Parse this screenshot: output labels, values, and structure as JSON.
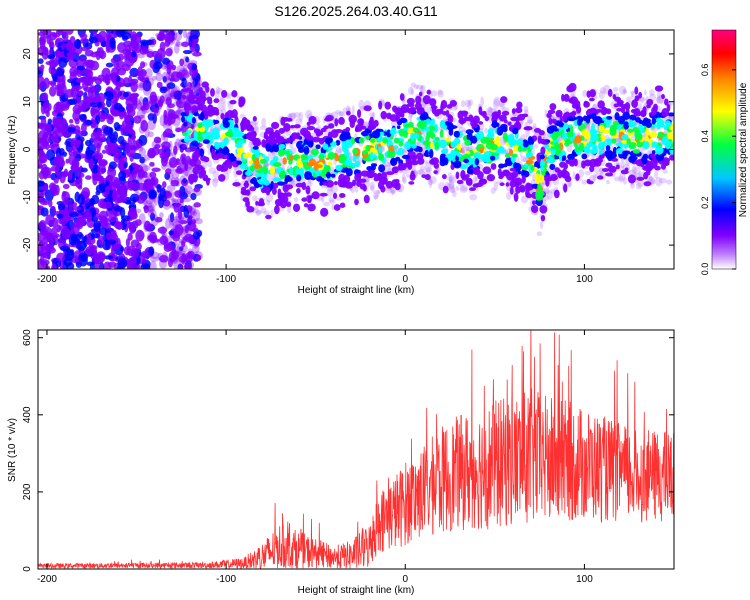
{
  "title": "S126.2025.264.03.40.G11",
  "chart_data": [
    {
      "type": "heatmap",
      "xlabel": "Height of straight line (km)",
      "ylabel": "Frequency (Hz)",
      "xlim": [
        -205,
        150
      ],
      "ylim": [
        -25,
        25
      ],
      "xticks": [
        -200,
        -100,
        0,
        100
      ],
      "yticks": [
        -20,
        -10,
        0,
        10,
        20
      ],
      "colorbar": {
        "label": "Normalized spectral amplitude",
        "range": [
          0,
          0.72
        ],
        "ticks": [
          "0.0",
          "0.2",
          "0.4",
          "0.6"
        ],
        "tick_values": [
          0,
          0.2,
          0.4,
          0.6
        ],
        "colors": [
          "#ffffff",
          "#8000ff",
          "#0000ff",
          "#00ffff",
          "#00ff40",
          "#ffff00",
          "#ff8000",
          "#ff0000",
          "#ff0080"
        ]
      },
      "ridge": {
        "x": [
          -140,
          -120,
          -105,
          -95,
          -88,
          -80,
          -70,
          -60,
          -50,
          -40,
          -30,
          -20,
          -10,
          0,
          5,
          10,
          20,
          30,
          40,
          50,
          60,
          70,
          75,
          80,
          90,
          100,
          110,
          120,
          130,
          140,
          150
        ],
        "freq": [
          5,
          4,
          3,
          2,
          -2,
          -4,
          -3,
          -2,
          -3,
          -2,
          -1,
          0,
          0,
          2,
          4,
          3,
          2,
          0,
          0,
          1,
          0,
          -2,
          -8,
          0,
          2,
          3,
          3,
          3,
          2,
          3,
          3
        ]
      }
    },
    {
      "type": "line",
      "xlabel": "Height of straight line (km)",
      "ylabel": "SNR (10 * v/v)",
      "xlim": [
        -205,
        150
      ],
      "ylim": [
        0,
        620
      ],
      "xticks": [
        -200,
        -100,
        0,
        100
      ],
      "yticks": [
        0,
        200,
        400,
        600
      ],
      "color": "#ff3030",
      "envelope": {
        "x": [
          -205,
          -110,
          -90,
          -80,
          -70,
          -60,
          -50,
          -40,
          -30,
          -20,
          -15,
          -5,
          0,
          10,
          20,
          30,
          40,
          50,
          60,
          70,
          80,
          90,
          100,
          110,
          120,
          130,
          140,
          150
        ],
        "mean": [
          8,
          10,
          15,
          30,
          60,
          50,
          40,
          30,
          35,
          60,
          120,
          150,
          170,
          200,
          230,
          250,
          260,
          270,
          280,
          290,
          280,
          280,
          270,
          260,
          250,
          240,
          240,
          240
        ],
        "spread": [
          6,
          8,
          15,
          40,
          60,
          50,
          40,
          30,
          40,
          60,
          80,
          100,
          110,
          120,
          140,
          150,
          160,
          170,
          170,
          180,
          170,
          160,
          150,
          140,
          130,
          120,
          120,
          120
        ]
      }
    }
  ]
}
